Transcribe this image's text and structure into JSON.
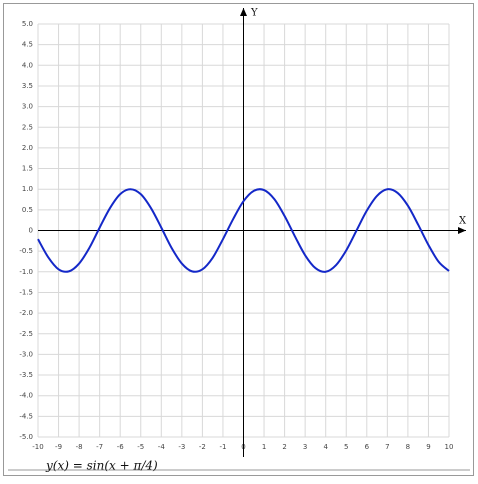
{
  "chart_data": {
    "type": "line",
    "formula": "y(x) = sin(x + π/4)",
    "x_label": "X",
    "y_label": "Y",
    "xlim": [
      -10,
      10
    ],
    "ylim": [
      -5,
      5
    ],
    "xticks": [
      -10,
      -9,
      -8,
      -7,
      -6,
      -5,
      -4,
      -3,
      -2,
      -1,
      0,
      1,
      2,
      3,
      4,
      5,
      6,
      7,
      8,
      9,
      10
    ],
    "yticks": [
      {
        "value": -5,
        "label": "-5.0"
      },
      -4.5,
      {
        "value": -4,
        "label": "-4.0"
      },
      -3.5,
      {
        "value": -3,
        "label": "-3.0"
      },
      -2.5,
      {
        "value": -2,
        "label": "-2.0"
      },
      -1.5,
      {
        "value": -1,
        "label": "-1.0"
      },
      -0.5,
      0,
      0.5,
      {
        "value": 1,
        "label": "1.0"
      },
      1.5,
      {
        "value": 2,
        "label": "2.0"
      },
      2.5,
      {
        "value": 3,
        "label": "3.0"
      },
      3.5,
      {
        "value": 4,
        "label": "4.0"
      },
      4.5,
      {
        "value": 5,
        "label": "5.0"
      }
    ],
    "grid": true,
    "series": [
      {
        "name": "y(x)",
        "color": "#1428c8",
        "x": [
          -10,
          -9.5,
          -9,
          -8.5,
          -8,
          -7.5,
          -7,
          -6.5,
          -6,
          -5.5,
          -5,
          -4.5,
          -4,
          -3.5,
          -3,
          -2.5,
          -2,
          -1.5,
          -1,
          -0.5,
          0,
          0.5,
          1,
          1.5,
          2,
          2.5,
          3,
          3.5,
          4,
          4.5,
          5,
          5.5,
          6,
          6.5,
          7,
          7.5,
          8,
          8.5,
          9,
          9.5,
          10
        ],
        "values": [
          -0.21,
          -0.65,
          -0.94,
          -0.99,
          -0.8,
          -0.42,
          0.07,
          0.54,
          0.88,
          1.0,
          0.88,
          0.54,
          0.07,
          -0.42,
          -0.8,
          -0.99,
          -0.94,
          -0.66,
          -0.21,
          0.28,
          0.71,
          0.96,
          0.98,
          0.76,
          0.35,
          -0.14,
          -0.6,
          -0.91,
          -1.0,
          -0.84,
          -0.48,
          0.0,
          0.48,
          0.84,
          1.0,
          0.91,
          0.6,
          0.14,
          -0.35,
          -0.76,
          -0.98
        ]
      }
    ]
  }
}
